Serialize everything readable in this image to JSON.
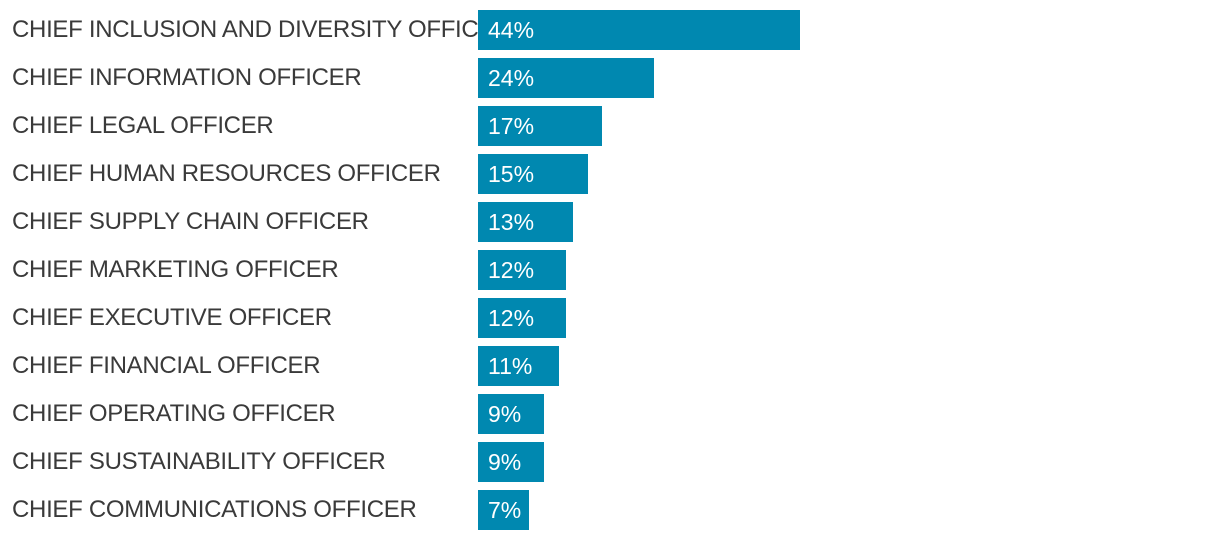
{
  "chart_data": {
    "type": "bar",
    "orientation": "horizontal",
    "categories": [
      "CHIEF INCLUSION AND DIVERSITY OFFICER",
      "CHIEF INFORMATION OFFICER",
      "CHIEF LEGAL OFFICER",
      "CHIEF HUMAN RESOURCES OFFICER",
      "CHIEF SUPPLY CHAIN OFFICER",
      "CHIEF MARKETING OFFICER",
      "CHIEF EXECUTIVE OFFICER",
      "CHIEF FINANCIAL OFFICER",
      "CHIEF OPERATING OFFICER",
      "CHIEF SUSTAINABILITY OFFICER",
      "CHIEF COMMUNICATIONS OFFICER"
    ],
    "values": [
      44,
      24,
      17,
      15,
      13,
      12,
      12,
      11,
      9,
      9,
      7
    ],
    "value_labels": [
      "44%",
      "24%",
      "17%",
      "15%",
      "13%",
      "12%",
      "12%",
      "11%",
      "9%",
      "9%",
      "7%"
    ],
    "unit": "%",
    "title": "",
    "xlabel": "",
    "ylabel": "",
    "xlim": [
      0,
      44
    ],
    "grid": false,
    "legend": "none",
    "colors": {
      "bar": "#0088b0",
      "label_text": "#3a3a3a",
      "value_text": "#ffffff"
    }
  }
}
